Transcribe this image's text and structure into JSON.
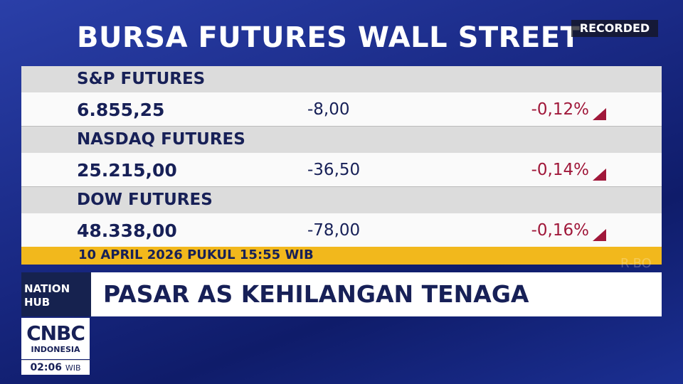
{
  "header": {
    "title": "BURSA FUTURES WALL STREET",
    "badge": "RECORDED"
  },
  "table": {
    "rows": [
      {
        "name": "S&P FUTURES",
        "value": "6.855,25",
        "change": "-8,00",
        "percent": "-0,12%"
      },
      {
        "name": "NASDAQ FUTURES",
        "value": "25.215,00",
        "change": "-36,50",
        "percent": "-0,14%"
      },
      {
        "name": "DOW FUTURES",
        "value": "48.338,00",
        "change": "-78,00",
        "percent": "-0,16%"
      }
    ],
    "footer": "10 APRIL 2026 PUKUL 15:55 WIB"
  },
  "watermark": "R-BO",
  "ticker": {
    "program": [
      "NATION",
      "HUB"
    ],
    "headline": "PASAR AS KEHILANGAN TENAGA"
  },
  "logo": {
    "brand": "CNBC",
    "region": "INDONESIA",
    "time": "02:06",
    "zone": "WIB"
  }
}
